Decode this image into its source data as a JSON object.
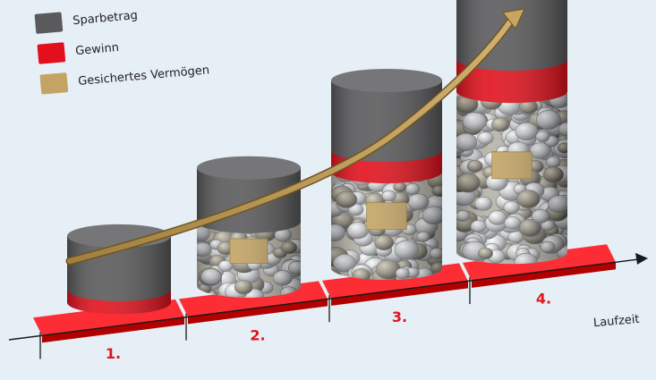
{
  "chart_data": {
    "type": "bar",
    "stacked": true,
    "categories": [
      "1.",
      "2.",
      "3.",
      "4."
    ],
    "xlabel": "Laufzeit",
    "ylabel": "",
    "title": "",
    "series": [
      {
        "name": "Sparbetrag",
        "color": "#5a5a5c",
        "values": [
          50,
          50,
          65,
          70
        ]
      },
      {
        "name": "Gewinn",
        "color": "#e2101c",
        "values": [
          12,
          0,
          20,
          30
        ]
      },
      {
        "name": "Gesichertes Vermögen",
        "color": "#c4a464",
        "values": [
          0,
          60,
          90,
          150
        ]
      }
    ],
    "trend_arrow": true,
    "legend_position": "top-left",
    "category_color": "#e3141c"
  }
}
